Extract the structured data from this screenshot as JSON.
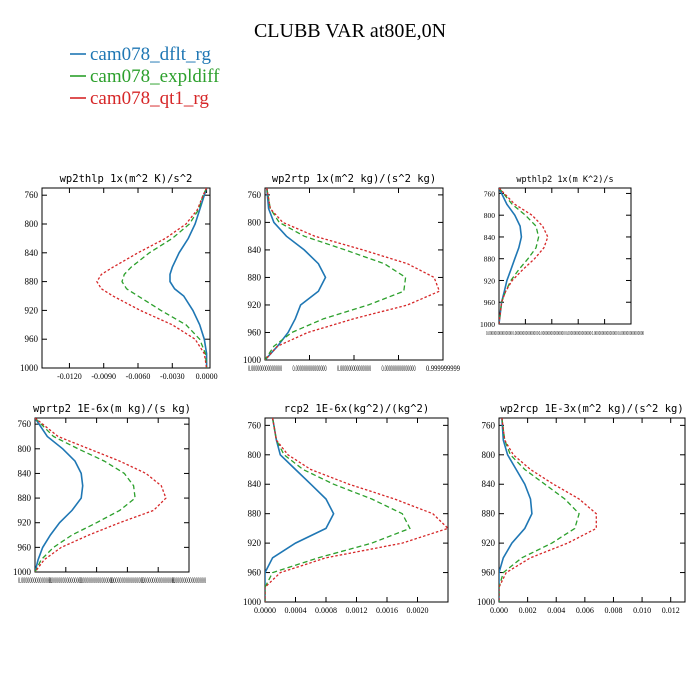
{
  "title": "CLUBB VAR at80E,0N",
  "legend": [
    {
      "name": "cam078_dflt_rg",
      "color": "#1f77b4"
    },
    {
      "name": "cam078_expldiff",
      "color": "#2ca02c"
    },
    {
      "name": "cam078_qt1_rg",
      "color": "#d62728"
    }
  ],
  "chart_data": [
    {
      "type": "line",
      "title": "wp2thlp  1x(m^2 K)/s^2",
      "ylim": [
        1000,
        750
      ],
      "yticks": [
        760,
        800,
        840,
        880,
        920,
        960,
        1000
      ],
      "xlim": [
        -0.0144,
        0.0003
      ],
      "xticks": [
        -0.012,
        -0.009,
        -0.006,
        -0.003,
        0.0
      ],
      "xticklabels": [
        "-0.0120",
        "-0.0090",
        "-0.0060",
        "-0.0030",
        "0.0000"
      ],
      "y": [
        750,
        760,
        780,
        800,
        820,
        840,
        860,
        870,
        880,
        890,
        900,
        920,
        940,
        960,
        980,
        1000
      ],
      "series": [
        {
          "name": "cam078_dflt_rg",
          "values": [
            0.0,
            -0.0002,
            -0.0006,
            -0.001,
            -0.0016,
            -0.0024,
            -0.003,
            -0.0032,
            -0.0032,
            -0.0028,
            -0.002,
            -0.0012,
            -0.0006,
            -0.0002,
            0.0,
            0.0
          ]
        },
        {
          "name": "cam078_expldiff",
          "values": [
            0.0,
            -0.0003,
            -0.0007,
            -0.0015,
            -0.003,
            -0.005,
            -0.0066,
            -0.0072,
            -0.0074,
            -0.007,
            -0.006,
            -0.004,
            -0.0018,
            -0.0006,
            -0.0001,
            0.0
          ]
        },
        {
          "name": "cam078_qt1_rg",
          "values": [
            0.0,
            -0.0003,
            -0.0008,
            -0.0018,
            -0.0036,
            -0.006,
            -0.0082,
            -0.0092,
            -0.0096,
            -0.0092,
            -0.0082,
            -0.0058,
            -0.003,
            -0.001,
            -0.0002,
            0.0
          ]
        }
      ]
    },
    {
      "type": "line",
      "title": "wp2rtp  1x(m^2 kg)/(s^2 kg)",
      "ylim": [
        1000,
        750
      ],
      "yticks": [
        760,
        800,
        840,
        880,
        920,
        960,
        1000
      ],
      "xlim": [
        0,
        1
      ],
      "xticks": [
        0,
        0.25,
        0.5,
        0.75,
        1.0
      ],
      "xticklabels": [
        "0.000000000000000",
        "0.000000000000000",
        "0.000000000000000",
        "0.000000000000000",
        "0.999999999"
      ],
      "y": [
        750,
        780,
        800,
        820,
        840,
        860,
        880,
        900,
        920,
        940,
        960,
        980,
        1000
      ],
      "series": [
        {
          "name": "cam078_dflt_rg",
          "values": [
            0.01,
            0.02,
            0.05,
            0.12,
            0.22,
            0.3,
            0.34,
            0.3,
            0.2,
            0.17,
            0.13,
            0.07,
            0.0
          ]
        },
        {
          "name": "cam078_expldiff",
          "values": [
            0.01,
            0.03,
            0.08,
            0.22,
            0.45,
            0.67,
            0.79,
            0.78,
            0.58,
            0.33,
            0.15,
            0.05,
            0.0
          ]
        },
        {
          "name": "cam078_qt1_rg",
          "values": [
            0.01,
            0.03,
            0.1,
            0.28,
            0.55,
            0.8,
            0.95,
            0.98,
            0.8,
            0.5,
            0.24,
            0.07,
            0.0
          ]
        }
      ]
    },
    {
      "type": "line",
      "title": "wpthlp2  1x(m K^2)/s",
      "ylim": [
        1000,
        750
      ],
      "yticks": [
        760,
        800,
        840,
        880,
        920,
        960,
        1000
      ],
      "xlim": [
        0,
        1
      ],
      "xticks": [
        0,
        0.2,
        0.4,
        0.6,
        0.8,
        1.0
      ],
      "xticklabels": [
        "0.000000000000000",
        "0.000000000000000",
        "0.000000000000000",
        "0.000000000000000",
        "0.000000000000000",
        "0.000000000000000"
      ],
      "y": [
        750,
        780,
        800,
        820,
        840,
        860,
        880,
        900,
        920,
        940,
        960,
        980,
        1000
      ],
      "series": [
        {
          "name": "cam078_dflt_rg",
          "values": [
            0.0,
            0.06,
            0.12,
            0.16,
            0.17,
            0.15,
            0.12,
            0.09,
            0.06,
            0.04,
            0.02,
            0.01,
            0.0
          ]
        },
        {
          "name": "cam078_expldiff",
          "values": [
            0.0,
            0.1,
            0.2,
            0.28,
            0.3,
            0.28,
            0.22,
            0.15,
            0.09,
            0.05,
            0.02,
            0.01,
            0.0
          ]
        },
        {
          "name": "cam078_qt1_rg",
          "values": [
            0.0,
            0.12,
            0.25,
            0.33,
            0.37,
            0.34,
            0.27,
            0.18,
            0.1,
            0.05,
            0.02,
            0.01,
            0.0
          ]
        }
      ]
    },
    {
      "type": "line",
      "title": "wprtp2  1E-6x(m kg)/(s kg)",
      "ylim": [
        1000,
        750
      ],
      "yticks": [
        760,
        800,
        840,
        880,
        920,
        960,
        1000
      ],
      "xlim": [
        0,
        1
      ],
      "xticks": [
        0,
        0.2,
        0.4,
        0.6,
        0.8,
        1.0
      ],
      "xticklabels": [
        "0.000000000000000",
        "0.000000000000000",
        "0.000000000000000",
        "0.000000000000000",
        "0.000000000000000",
        "0.000000000000000"
      ],
      "y": [
        750,
        780,
        800,
        820,
        840,
        860,
        880,
        900,
        920,
        940,
        960,
        980,
        1000
      ],
      "series": [
        {
          "name": "cam078_dflt_rg",
          "values": [
            0.0,
            0.08,
            0.18,
            0.26,
            0.3,
            0.31,
            0.3,
            0.24,
            0.16,
            0.1,
            0.05,
            0.02,
            0.0
          ]
        },
        {
          "name": "cam078_expldiff",
          "values": [
            0.0,
            0.12,
            0.28,
            0.45,
            0.58,
            0.64,
            0.65,
            0.55,
            0.4,
            0.24,
            0.12,
            0.04,
            0.0
          ]
        },
        {
          "name": "cam078_qt1_rg",
          "values": [
            0.0,
            0.15,
            0.35,
            0.55,
            0.72,
            0.82,
            0.85,
            0.77,
            0.55,
            0.35,
            0.17,
            0.06,
            0.0
          ]
        }
      ]
    },
    {
      "type": "line",
      "title": "rcp2  1E-6x(kg^2)/(kg^2)",
      "ylim": [
        1000,
        750
      ],
      "yticks": [
        760,
        800,
        840,
        880,
        920,
        960,
        1000
      ],
      "xlim": [
        0,
        0.0024
      ],
      "xticks": [
        0,
        0.0004,
        0.0008,
        0.0012,
        0.0016,
        0.002
      ],
      "xticklabels": [
        "0.0000",
        "0.0004",
        "0.0008",
        "0.0012",
        "0.0016",
        "0.0020"
      ],
      "y": [
        750,
        780,
        800,
        820,
        840,
        860,
        880,
        900,
        920,
        940,
        960,
        980,
        1000
      ],
      "series": [
        {
          "name": "cam078_dflt_rg",
          "values": [
            0.0001,
            0.00015,
            0.0002,
            0.0004,
            0.0006,
            0.0008,
            0.0009,
            0.0008,
            0.0004,
            0.0001,
            0.0,
            0.0,
            0.0
          ]
        },
        {
          "name": "cam078_expldiff",
          "values": [
            0.0001,
            0.00015,
            0.00025,
            0.0005,
            0.0009,
            0.0014,
            0.0018,
            0.0019,
            0.0014,
            0.0007,
            0.0001,
            0.0,
            0.0
          ]
        },
        {
          "name": "cam078_qt1_rg",
          "values": [
            0.0001,
            0.00015,
            0.0003,
            0.0006,
            0.0011,
            0.0017,
            0.0022,
            0.0024,
            0.0018,
            0.0008,
            0.0002,
            0.0,
            0.0
          ]
        }
      ]
    },
    {
      "type": "line",
      "title": "wp2rcp  1E-3x(m^2 kg)/(s^2 kg)",
      "ylim": [
        1000,
        750
      ],
      "yticks": [
        760,
        800,
        840,
        880,
        920,
        960,
        1000
      ],
      "xlim": [
        0,
        0.013
      ],
      "xticks": [
        0,
        0.002,
        0.004,
        0.006,
        0.008,
        0.01,
        0.012
      ],
      "xticklabels": [
        "0.000",
        "0.002",
        "0.004",
        "0.006",
        "0.008",
        "0.010",
        "0.012"
      ],
      "y": [
        750,
        780,
        800,
        820,
        840,
        860,
        880,
        900,
        920,
        940,
        960,
        980,
        1000
      ],
      "series": [
        {
          "name": "cam078_dflt_rg",
          "values": [
            0.0002,
            0.0003,
            0.0006,
            0.0012,
            0.0018,
            0.0022,
            0.0023,
            0.0018,
            0.0009,
            0.0003,
            0.0,
            0.0,
            0.0
          ]
        },
        {
          "name": "cam078_expldiff",
          "values": [
            0.0002,
            0.0004,
            0.0008,
            0.0018,
            0.0032,
            0.0046,
            0.0056,
            0.0053,
            0.0037,
            0.0016,
            0.0003,
            0.0,
            0.0
          ]
        },
        {
          "name": "cam078_qt1_rg",
          "values": [
            0.0002,
            0.0004,
            0.001,
            0.0022,
            0.0038,
            0.0056,
            0.0068,
            0.0068,
            0.0048,
            0.0022,
            0.0005,
            0.0,
            0.0
          ]
        }
      ]
    }
  ]
}
